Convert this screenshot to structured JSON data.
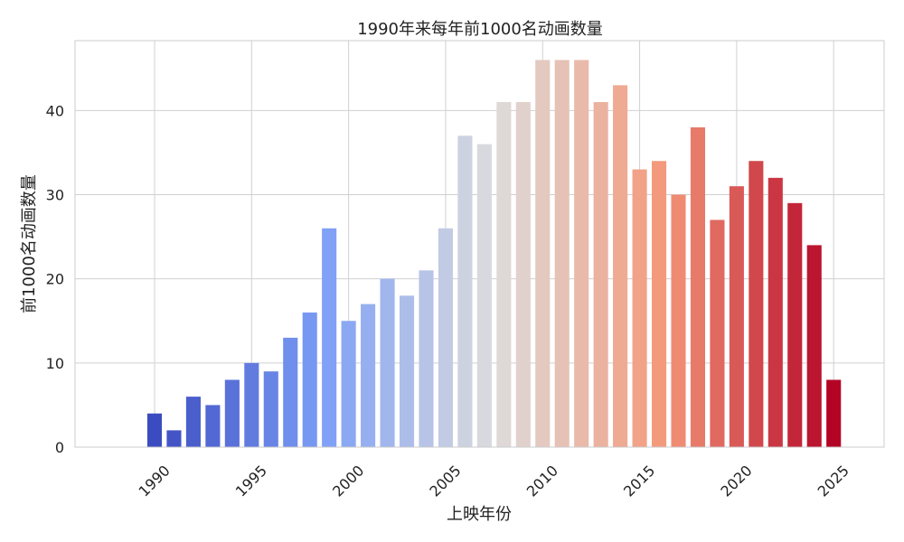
{
  "chart_data": {
    "type": "bar",
    "title": "1990年来每年前1000名动画数量",
    "xlabel": "上映年份",
    "ylabel": "前1000名动画数量",
    "x": [
      1990,
      1991,
      1992,
      1993,
      1994,
      1995,
      1996,
      1997,
      1998,
      1999,
      2000,
      2001,
      2002,
      2003,
      2004,
      2005,
      2006,
      2007,
      2008,
      2009,
      2010,
      2011,
      2012,
      2013,
      2014,
      2015,
      2016,
      2017,
      2018,
      2019,
      2020,
      2021,
      2022,
      2023,
      2024,
      2025
    ],
    "values": [
      4,
      2,
      6,
      5,
      8,
      10,
      9,
      13,
      16,
      26,
      15,
      17,
      20,
      18,
      21,
      26,
      37,
      36,
      41,
      41,
      46,
      46,
      46,
      41,
      43,
      33,
      34,
      30,
      38,
      27,
      31,
      34,
      32,
      29,
      24,
      8
    ],
    "xticks": [
      1990,
      1995,
      2000,
      2005,
      2010,
      2015,
      2020,
      2025
    ],
    "yticks": [
      0,
      10,
      20,
      30,
      40
    ],
    "xlim": [
      1985.9,
      2027.6
    ],
    "ylim": [
      0,
      48.3
    ],
    "colormap": "coolwarm",
    "grid": true
  }
}
